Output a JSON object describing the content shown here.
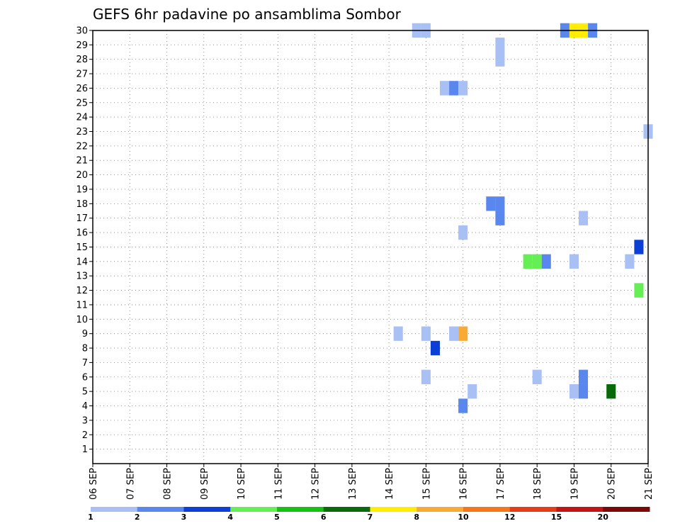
{
  "chart_data": {
    "type": "heatmap",
    "title": "GEFS 6hr padavine po ansamblima Sombor",
    "xlabel": "",
    "ylabel": "",
    "x_ticks": [
      "06 SEP",
      "07 SEP",
      "08 SEP",
      "09 SEP",
      "10 SEP",
      "11 SEP",
      "12 SEP",
      "13 SEP",
      "14 SEP",
      "15 SEP",
      "16 SEP",
      "17 SEP",
      "18 SEP",
      "19 SEP",
      "20 SEP",
      "21 SEP"
    ],
    "y_ticks": [
      "1",
      "2",
      "3",
      "4",
      "5",
      "6",
      "7",
      "8",
      "9",
      "10",
      "11",
      "12",
      "13",
      "14",
      "15",
      "16",
      "17",
      "18",
      "19",
      "20",
      "21",
      "22",
      "23",
      "24",
      "25",
      "26",
      "27",
      "28",
      "29",
      "30"
    ],
    "xlim_days": [
      0,
      15
    ],
    "ylim": [
      0,
      30
    ],
    "grid": true,
    "colorbar": {
      "labels": [
        "1",
        "2",
        "3",
        "4",
        "5",
        "6",
        "7",
        "8",
        "10",
        "12",
        "15",
        "20"
      ],
      "colors": [
        "#a8c0f4",
        "#5a87ed",
        "#0c3fd6",
        "#66ee55",
        "#13c213",
        "#0a6a0a",
        "#ffee00",
        "#f9aa35",
        "#f7761c",
        "#e63d18",
        "#c21515",
        "#7a0a0a"
      ]
    },
    "cells": [
      {
        "day": 8.25,
        "member": 9,
        "value": 1
      },
      {
        "day": 8.75,
        "member": 30,
        "value": 1
      },
      {
        "day": 9.0,
        "member": 30,
        "value": 1
      },
      {
        "day": 9.0,
        "member": 9,
        "value": 1
      },
      {
        "day": 9.0,
        "member": 6,
        "value": 1
      },
      {
        "day": 9.25,
        "member": 8,
        "value": 3
      },
      {
        "day": 9.5,
        "member": 26,
        "value": 1
      },
      {
        "day": 9.75,
        "member": 26,
        "value": 2
      },
      {
        "day": 9.75,
        "member": 9,
        "value": 1
      },
      {
        "day": 10.0,
        "member": 26,
        "value": 1
      },
      {
        "day": 10.0,
        "member": 16,
        "value": 1
      },
      {
        "day": 10.0,
        "member": 9,
        "value": 8
      },
      {
        "day": 10.0,
        "member": 4,
        "value": 2
      },
      {
        "day": 10.25,
        "member": 5,
        "value": 1
      },
      {
        "day": 10.75,
        "member": 18,
        "value": 2
      },
      {
        "day": 11.0,
        "member": 18,
        "value": 2
      },
      {
        "day": 11.0,
        "member": 17,
        "value": 2
      },
      {
        "day": 11.0,
        "member": 29,
        "value": 1
      },
      {
        "day": 11.0,
        "member": 28,
        "value": 1
      },
      {
        "day": 11.75,
        "member": 14,
        "value": 4
      },
      {
        "day": 12.0,
        "member": 14,
        "value": 4
      },
      {
        "day": 12.0,
        "member": 6,
        "value": 1
      },
      {
        "day": 12.25,
        "member": 14,
        "value": 2
      },
      {
        "day": 12.75,
        "member": 30,
        "value": 2
      },
      {
        "day": 13.0,
        "member": 30,
        "value": 7
      },
      {
        "day": 13.25,
        "member": 30,
        "value": 7
      },
      {
        "day": 13.5,
        "member": 30,
        "value": 2
      },
      {
        "day": 13.0,
        "member": 14,
        "value": 1
      },
      {
        "day": 13.0,
        "member": 5,
        "value": 1
      },
      {
        "day": 13.25,
        "member": 17,
        "value": 1
      },
      {
        "day": 13.25,
        "member": 6,
        "value": 2
      },
      {
        "day": 13.25,
        "member": 5,
        "value": 2
      },
      {
        "day": 14.0,
        "member": 5,
        "value": 6
      },
      {
        "day": 14.5,
        "member": 14,
        "value": 1
      },
      {
        "day": 14.75,
        "member": 15,
        "value": 3
      },
      {
        "day": 14.75,
        "member": 12,
        "value": 4
      },
      {
        "day": 15.0,
        "member": 23,
        "value": 1
      }
    ]
  }
}
